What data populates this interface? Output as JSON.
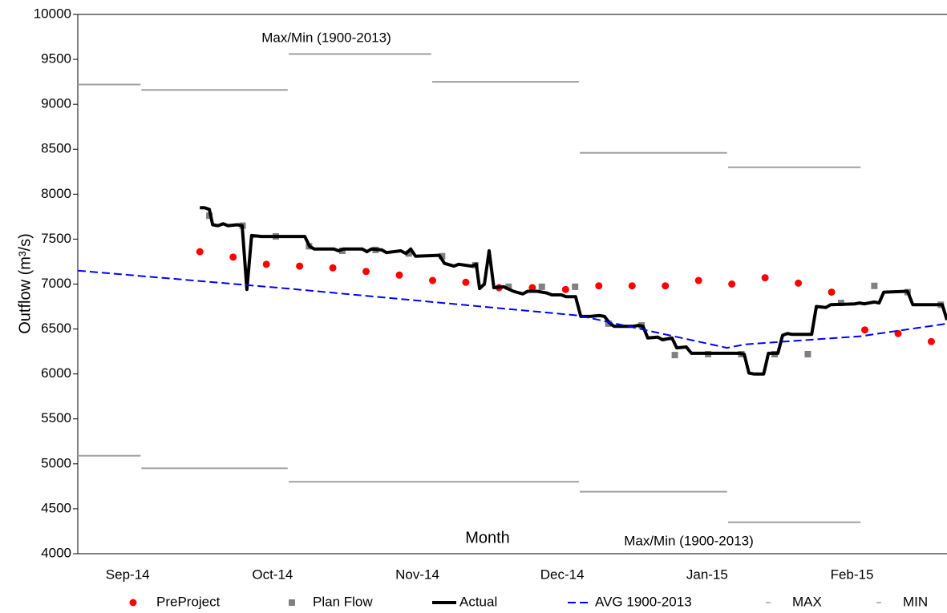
{
  "chart_data": {
    "type": "line",
    "y_label": "Outflow (m³/s)",
    "x_label": "Month",
    "annotations": [
      "Max/Min (1900-2013)",
      "Max/Min (1900-2013)"
    ],
    "xlim": [
      0,
      183
    ],
    "xticks": [
      {
        "value": 10.5,
        "label": "Sep-14"
      },
      {
        "value": 41,
        "label": "Oct-14"
      },
      {
        "value": 71.5,
        "label": "Nov-14"
      },
      {
        "value": 102,
        "label": "Dec-14"
      },
      {
        "value": 132.5,
        "label": "Jan-15"
      },
      {
        "value": 163,
        "label": "Feb-15"
      }
    ],
    "ylim": [
      4000,
      10000
    ],
    "yticks": [
      4000,
      4500,
      5000,
      5500,
      6000,
      6500,
      7000,
      7500,
      8000,
      8500,
      9000,
      9500,
      10000
    ],
    "grid": false,
    "legend": "bottom",
    "series": [
      {
        "name": "PreProject",
        "color": "#ff0000",
        "marker": "circle",
        "x": [
          25.7,
          32.7,
          39.7,
          46.7,
          53.7,
          60.7,
          67.7,
          74.7,
          81.7,
          88.7,
          95.7,
          102.7,
          109.7,
          116.7,
          123.7,
          130.7,
          137.7,
          144.7,
          151.7,
          158.7,
          165.7,
          172.7,
          179.7
        ],
        "values": [
          7360,
          7300,
          7220,
          7200,
          7180,
          7140,
          7100,
          7040,
          7020,
          6960,
          6960,
          6940,
          6980,
          6980,
          6980,
          7040,
          7000,
          7070,
          7010,
          6910,
          6490,
          6450,
          6360
        ]
      },
      {
        "name": "Plan Flow",
        "color": "#808080",
        "marker": "square",
        "x": [
          27.7,
          34.7,
          41.7,
          48.7,
          55.7,
          62.7,
          69.7,
          76.7,
          83.7,
          90.7,
          97.7,
          104.7,
          111.7,
          118.7,
          125.7,
          132.7,
          139.7,
          146.7,
          153.7,
          160.7,
          167.7,
          174.7,
          181.7
        ],
        "values": [
          7760,
          7650,
          7530,
          7420,
          7370,
          7380,
          7340,
          7310,
          7210,
          6970,
          6970,
          6970,
          6560,
          6540,
          6210,
          6220,
          6220,
          6220,
          6220,
          6790,
          6980,
          6910,
          6770
        ]
      },
      {
        "name": "Actual",
        "color": "#000000",
        "width": 4,
        "x": [
          25.7,
          26.7,
          27.7,
          28.4,
          29.5,
          30.6,
          31.6,
          33.6,
          34.6,
          35.6,
          36.6,
          38.7,
          47.8,
          48.8,
          49.8,
          53.9,
          54.9,
          55.9,
          59.9,
          60.9,
          61.8,
          64.0,
          65.0,
          68.0,
          69.1,
          70.1,
          71.1,
          76.1,
          77.2,
          79.2,
          80.2,
          82.9,
          83.9,
          84.6,
          85.6,
          86.6,
          87.6,
          89.7,
          91.7,
          93.7,
          94.7,
          96.7,
          98.8,
          99.8,
          101.8,
          102.8,
          104.8,
          105.9,
          107.9,
          109.9,
          110.9,
          111.9,
          112.9,
          117.0,
          118.0,
          119.0,
          120.0,
          122.1,
          123.1,
          125.1,
          126.1,
          128.1,
          129.2,
          139.3,
          140.3,
          141.3,
          142.3,
          144.4,
          145.4,
          147.4,
          148.4,
          149.4,
          150.4,
          154.5,
          155.5,
          157.5,
          158.5,
          163.6,
          164.6,
          165.6,
          167.7,
          168.7,
          169.7,
          174.7,
          175.8,
          182.0,
          183.0
        ],
        "values": [
          7850,
          7850,
          7830,
          7660,
          7650,
          7670,
          7650,
          7660,
          7650,
          6940,
          7540,
          7530,
          7530,
          7420,
          7390,
          7390,
          7370,
          7390,
          7390,
          7360,
          7390,
          7380,
          7350,
          7370,
          7340,
          7390,
          7310,
          7320,
          7230,
          7200,
          7220,
          7200,
          7220,
          6950,
          7000,
          7370,
          6960,
          6970,
          6920,
          6890,
          6920,
          6920,
          6900,
          6880,
          6880,
          6860,
          6860,
          6640,
          6640,
          6650,
          6640,
          6570,
          6530,
          6530,
          6540,
          6530,
          6400,
          6410,
          6380,
          6400,
          6290,
          6300,
          6230,
          6230,
          6220,
          6010,
          6000,
          6000,
          6230,
          6230,
          6430,
          6450,
          6440,
          6440,
          6750,
          6740,
          6770,
          6780,
          6790,
          6780,
          6800,
          6790,
          6910,
          6920,
          6770,
          6770,
          6600
        ]
      },
      {
        "name": "AVG 1900-2013",
        "color": "#0000ff",
        "width": 2,
        "dash": true,
        "x": [
          0,
          44.2,
          105.5,
          136.7,
          140.6,
          164.8,
          183
        ],
        "values": [
          7150,
          6950,
          6650,
          6290,
          6330,
          6420,
          6560
        ]
      },
      {
        "name": "MAX",
        "color": "#a0a0a0",
        "width": 2,
        "x": [
          0,
          13.2,
          null,
          13.4,
          44.2,
          null,
          44.4,
          74.4,
          null,
          74.6,
          105.5,
          null,
          105.7,
          136.7,
          null,
          136.9,
          164.8
        ],
        "values": [
          9220,
          9220,
          null,
          9160,
          9160,
          null,
          9560,
          9560,
          null,
          9250,
          9250,
          null,
          8460,
          8460,
          null,
          8300,
          8300
        ]
      },
      {
        "name": "MIN",
        "color": "#a0a0a0",
        "width": 2,
        "x": [
          0,
          13.2,
          null,
          13.4,
          44.2,
          null,
          44.4,
          105.5,
          null,
          105.7,
          136.7,
          null,
          136.9,
          164.8
        ],
        "values": [
          5090,
          5090,
          null,
          4950,
          4950,
          null,
          4800,
          4800,
          null,
          4690,
          4690,
          null,
          4350,
          4350
        ]
      }
    ]
  }
}
